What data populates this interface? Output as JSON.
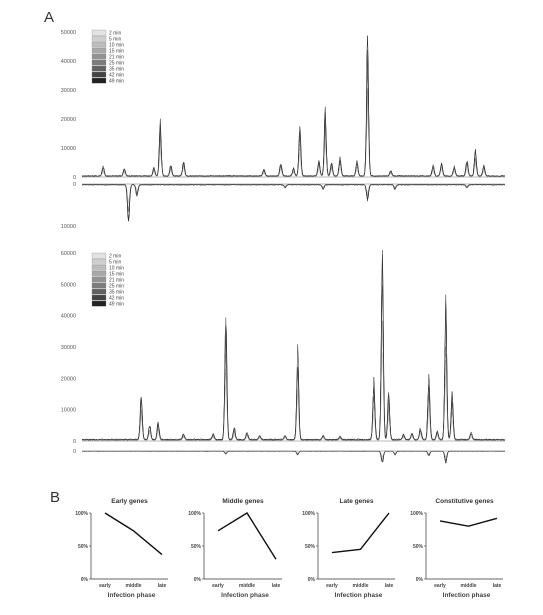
{
  "panels": {
    "a_label": "A",
    "b_label": "B"
  },
  "legend": {
    "entries": [
      "2 min",
      "5 min",
      "10 min",
      "15 min",
      "21 min",
      "25 min",
      "35 min",
      "42 min",
      "49 min"
    ],
    "colors": [
      "#e2e2e2",
      "#cfcfcf",
      "#bcbcbc",
      "#a8a8a8",
      "#939393",
      "#7c7c7c",
      "#626262",
      "#444444",
      "#222222"
    ]
  },
  "chart_data": [
    {
      "type": "line",
      "panel": "A-top",
      "legend_placement": "top-left",
      "series_names": [
        "2 min",
        "5 min",
        "10 min",
        "15 min",
        "21 min",
        "25 min",
        "35 min",
        "42 min",
        "49 min"
      ],
      "ylim_upper": [
        0,
        50000
      ],
      "yticks_upper": [
        0,
        10000,
        20000,
        30000,
        40000,
        50000
      ],
      "ylim_lower": [
        0,
        10000
      ],
      "yticks_lower": [
        0,
        10000
      ],
      "x_domain": [
        0,
        100
      ],
      "peaks_upper": [
        {
          "x": 5,
          "y": 3500
        },
        {
          "x": 10,
          "y": 2800
        },
        {
          "x": 17,
          "y": 3200
        },
        {
          "x": 18.5,
          "y": 19000
        },
        {
          "x": 21,
          "y": 4000
        },
        {
          "x": 24,
          "y": 5500
        },
        {
          "x": 43,
          "y": 2500
        },
        {
          "x": 47,
          "y": 5000
        },
        {
          "x": 50,
          "y": 3000
        },
        {
          "x": 51.5,
          "y": 17500
        },
        {
          "x": 56,
          "y": 6000
        },
        {
          "x": 57.5,
          "y": 23000
        },
        {
          "x": 59,
          "y": 5000
        },
        {
          "x": 61,
          "y": 7000
        },
        {
          "x": 65,
          "y": 5500
        },
        {
          "x": 67.5,
          "y": 50000
        },
        {
          "x": 73,
          "y": 2000
        },
        {
          "x": 83,
          "y": 4000
        },
        {
          "x": 85,
          "y": 5000
        },
        {
          "x": 88,
          "y": 3500
        },
        {
          "x": 91,
          "y": 6000
        },
        {
          "x": 93,
          "y": 9000
        },
        {
          "x": 95,
          "y": 4000
        }
      ],
      "peaks_lower": [
        {
          "x": 11,
          "y": 10000
        },
        {
          "x": 13,
          "y": 3000
        },
        {
          "x": 48,
          "y": 800
        },
        {
          "x": 57,
          "y": 1200
        },
        {
          "x": 67.5,
          "y": 4000
        },
        {
          "x": 74,
          "y": 1200
        },
        {
          "x": 91,
          "y": 800
        }
      ]
    },
    {
      "type": "line",
      "panel": "A-bottom",
      "legend_placement": "top-left",
      "series_names": [
        "2 min",
        "5 min",
        "10 min",
        "15 min",
        "21 min",
        "25 min",
        "35 min",
        "42 min",
        "49 min"
      ],
      "ylim_upper": [
        0,
        60000
      ],
      "yticks_upper": [
        0,
        10000,
        20000,
        30000,
        40000,
        50000,
        60000
      ],
      "ylim_lower": [
        0,
        3000
      ],
      "yticks_lower": [
        0
      ],
      "x_domain": [
        0,
        100
      ],
      "peaks_upper": [
        {
          "x": 14,
          "y": 15000
        },
        {
          "x": 16,
          "y": 5000
        },
        {
          "x": 18,
          "y": 6000
        },
        {
          "x": 24,
          "y": 2000
        },
        {
          "x": 31,
          "y": 2000
        },
        {
          "x": 34,
          "y": 42000
        },
        {
          "x": 36,
          "y": 4000
        },
        {
          "x": 39,
          "y": 2500
        },
        {
          "x": 42,
          "y": 1500
        },
        {
          "x": 48,
          "y": 1500
        },
        {
          "x": 51,
          "y": 30000
        },
        {
          "x": 57,
          "y": 1500
        },
        {
          "x": 61,
          "y": 1000
        },
        {
          "x": 69,
          "y": 20000
        },
        {
          "x": 71,
          "y": 65000
        },
        {
          "x": 72.5,
          "y": 16000
        },
        {
          "x": 76,
          "y": 2000
        },
        {
          "x": 78,
          "y": 2500
        },
        {
          "x": 80,
          "y": 4000
        },
        {
          "x": 82,
          "y": 22000
        },
        {
          "x": 84,
          "y": 3000
        },
        {
          "x": 86,
          "y": 47000
        },
        {
          "x": 87.5,
          "y": 16000
        },
        {
          "x": 92,
          "y": 2500
        }
      ],
      "peaks_lower": [
        {
          "x": 34,
          "y": 600
        },
        {
          "x": 51,
          "y": 800
        },
        {
          "x": 71,
          "y": 2500
        },
        {
          "x": 74,
          "y": 800
        },
        {
          "x": 82,
          "y": 1000
        },
        {
          "x": 86,
          "y": 2500
        }
      ]
    },
    {
      "type": "line",
      "panel": "B",
      "title": "Early genes",
      "xlabel": "Infection phase",
      "categories": [
        "early",
        "middle",
        "late"
      ],
      "values": [
        100,
        73,
        37
      ],
      "ylim": [
        0,
        100
      ],
      "yticks": [
        "0%",
        "50%",
        "100%"
      ]
    },
    {
      "type": "line",
      "panel": "B",
      "title": "Middle genes",
      "xlabel": "Infection phase",
      "categories": [
        "early",
        "middle",
        "late"
      ],
      "values": [
        73,
        100,
        30
      ],
      "ylim": [
        0,
        100
      ],
      "yticks": [
        "0%",
        "50%",
        "100%"
      ]
    },
    {
      "type": "line",
      "panel": "B",
      "title": "Late genes",
      "xlabel": "Infection phase",
      "categories": [
        "early",
        "middle",
        "late"
      ],
      "values": [
        40,
        45,
        100
      ],
      "ylim": [
        0,
        100
      ],
      "yticks": [
        "0%",
        "50%",
        "100%"
      ]
    },
    {
      "type": "line",
      "panel": "B",
      "title": "Constitutive genes",
      "xlabel": "Infection phase",
      "categories": [
        "early",
        "middle",
        "late"
      ],
      "values": [
        88,
        80,
        92
      ],
      "ylim": [
        0,
        100
      ],
      "yticks": [
        "0%",
        "50%",
        "100%"
      ]
    }
  ]
}
